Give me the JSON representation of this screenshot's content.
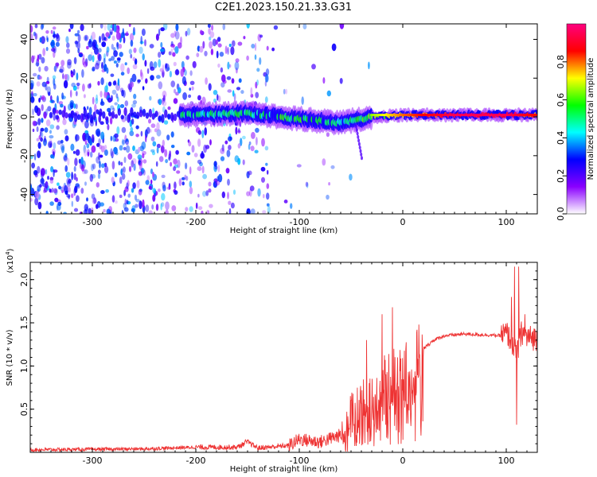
{
  "title": "C2E1.2023.150.21.33.G31",
  "chart_data": [
    {
      "type": "heatmap",
      "title": "C2E1.2023.150.21.33.G31",
      "xlabel": "Height of straight line (km)",
      "ylabel": "Frequency (Hz)",
      "xlim": [
        -360,
        130
      ],
      "ylim": [
        -50,
        48
      ],
      "x_ticks": [
        -300,
        -200,
        -100,
        0,
        100
      ],
      "y_ticks": [
        -40,
        -20,
        0,
        20,
        40
      ],
      "colorbar": {
        "label": "Normalized spectral amplitude",
        "range": [
          0.0,
          1.0
        ],
        "ticks": [
          0.0,
          0.2,
          0.4,
          0.6,
          0.8
        ],
        "colormap": [
          "#ffffff",
          "#8a00ff",
          "#0000ff",
          "#00ffff",
          "#00ff00",
          "#ffff00",
          "#ff0000",
          "#ff007f"
        ]
      },
      "ridge": {
        "frequency_hz": 1,
        "description_points": [
          {
            "x": -210,
            "y": 1,
            "value": 0.5
          },
          {
            "x": -150,
            "y": 2,
            "value": 0.5
          },
          {
            "x": -100,
            "y": -1,
            "value": 0.55
          },
          {
            "x": -60,
            "y": -3,
            "value": 0.45
          },
          {
            "x": -30,
            "y": 0,
            "value": 0.6
          },
          {
            "x": 0,
            "y": 1,
            "value": 0.75
          },
          {
            "x": 50,
            "y": 1,
            "value": 0.9
          },
          {
            "x": 100,
            "y": 1,
            "value": 0.9
          },
          {
            "x": 130,
            "y": 1,
            "value": 0.8
          }
        ]
      },
      "grid": false
    },
    {
      "type": "line",
      "xlabel": "Height of straight line (km)",
      "ylabel": "SNR (10 * v/v)",
      "y_scale_label": "(x10",
      "y_scale_exp": "4",
      "y_scale_close": ")",
      "xlim": [
        -360,
        130
      ],
      "ylim": [
        0,
        2.2
      ],
      "x_ticks": [
        -300,
        -200,
        -100,
        0,
        100
      ],
      "y_ticks": [
        0.5,
        1.0,
        1.5,
        2.0
      ],
      "y_tick_labels": [
        "0.5",
        "1.0",
        "1.5",
        "2.0"
      ],
      "color": "#ee3333",
      "envelope": {
        "x": [
          -360,
          -250,
          -200,
          -160,
          -150,
          -140,
          -110,
          -100,
          -80,
          -60,
          -50,
          -40,
          -30,
          -20,
          -10,
          0,
          10,
          20,
          30,
          40,
          60,
          80,
          95,
          100,
          105,
          108,
          110,
          115,
          120,
          130
        ],
        "y": [
          0.03,
          0.04,
          0.06,
          0.06,
          0.12,
          0.05,
          0.08,
          0.15,
          0.12,
          0.2,
          0.35,
          0.5,
          0.6,
          0.75,
          0.85,
          0.9,
          1.05,
          1.2,
          1.3,
          1.35,
          1.37,
          1.36,
          1.35,
          1.38,
          1.3,
          1.2,
          1.1,
          1.4,
          1.33,
          1.32
        ]
      },
      "spikes": [
        {
          "x": -152,
          "y": 0.15
        },
        {
          "x": -50,
          "y": 0.6
        },
        {
          "x": -35,
          "y": 1.3
        },
        {
          "x": -20,
          "y": 1.6
        },
        {
          "x": -10,
          "y": 1.68
        },
        {
          "x": -5,
          "y": 1.1
        },
        {
          "x": 105,
          "y": 1.8
        },
        {
          "x": 108,
          "y": 2.15
        },
        {
          "x": 110,
          "y": 0.32
        },
        {
          "x": 112,
          "y": 2.15
        },
        {
          "x": 118,
          "y": 1.6
        }
      ],
      "grid": false
    }
  ]
}
